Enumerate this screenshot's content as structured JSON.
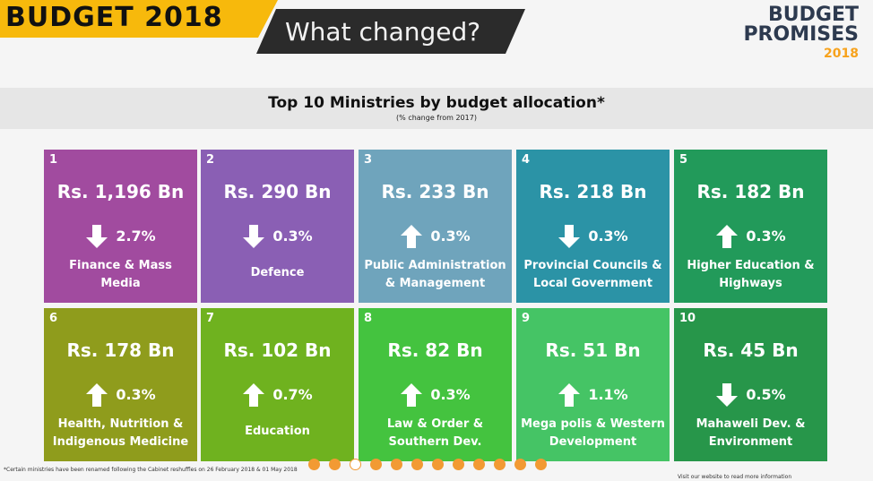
{
  "header": {
    "badge": "BUDGET 2018",
    "subtitle": "What changed?"
  },
  "logo": {
    "line1": "BUDGET",
    "line2": "PROMISES",
    "line3": "2018"
  },
  "section": {
    "title": "Top 10 Ministries by budget allocation*",
    "subtitle": "(% change from 2017)"
  },
  "colors": {
    "up_arrow": "#ffffff",
    "down_arrow": "#ffffff",
    "badge_bg": "#f7b90c",
    "dark_bg": "#2b2b2b",
    "dot": "#f29a33"
  },
  "tiles": [
    {
      "rank": "1",
      "amount": "Rs. 1,196 Bn",
      "direction": "down",
      "change": "2.7%",
      "label": "Finance & Mass Media",
      "color": "#a14b9f"
    },
    {
      "rank": "2",
      "amount": "Rs. 290 Bn",
      "direction": "down",
      "change": "0.3%",
      "label": "Defence",
      "color": "#8a5fb4"
    },
    {
      "rank": "3",
      "amount": "Rs. 233 Bn",
      "direction": "up",
      "change": "0.3%",
      "label": "Public Administration & Management",
      "color": "#6fa4bc"
    },
    {
      "rank": "4",
      "amount": "Rs. 218 Bn",
      "direction": "down",
      "change": "0.3%",
      "label": "Provincial Councils & Local Government",
      "color": "#2b93a6"
    },
    {
      "rank": "5",
      "amount": "Rs. 182 Bn",
      "direction": "up",
      "change": "0.3%",
      "label": "Higher Education & Highways",
      "color": "#229a5a"
    },
    {
      "rank": "6",
      "amount": "Rs. 178 Bn",
      "direction": "up",
      "change": "0.3%",
      "label": "Health, Nutrition & Indigenous Medicine",
      "color": "#8f9c1c"
    },
    {
      "rank": "7",
      "amount": "Rs. 102 Bn",
      "direction": "up",
      "change": "0.7%",
      "label": "Education",
      "color": "#6fb21f"
    },
    {
      "rank": "8",
      "amount": "Rs. 82 Bn",
      "direction": "up",
      "change": "0.3%",
      "label": "Law & Order & Southern Dev.",
      "color": "#44c33f"
    },
    {
      "rank": "9",
      "amount": "Rs. 51 Bn",
      "direction": "up",
      "change": "1.1%",
      "label": "Mega polis & Western Development",
      "color": "#45c465"
    },
    {
      "rank": "10",
      "amount": "Rs. 45 Bn",
      "direction": "down",
      "change": "0.5%",
      "label": "Mahaweli Dev. & Environment",
      "color": "#27964a"
    }
  ],
  "footnote": "*Certain ministries have been renamed following the Cabinet reshuffles on 26 February 2018 & 01 May 2018",
  "footnote_right": "Visit our website to read more information",
  "carousel": {
    "count": 12,
    "active_index": 2
  }
}
